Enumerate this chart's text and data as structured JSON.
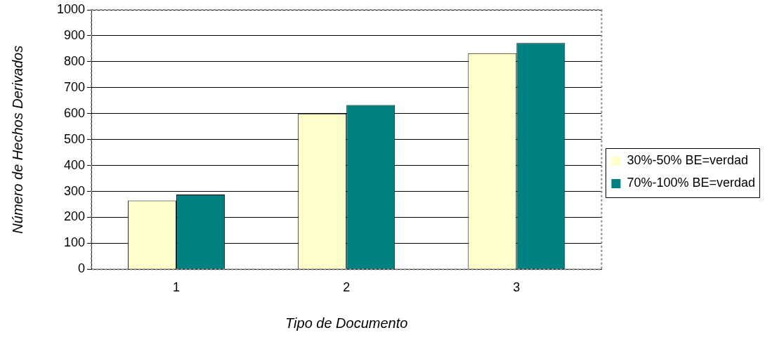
{
  "chart_data": {
    "type": "bar",
    "xlabel": "Tipo de Documento",
    "ylabel": "Número de Hechos Derivados",
    "categories": [
      "1",
      "2",
      "3"
    ],
    "series": [
      {
        "name": "30%-50% BE=verdad",
        "color": "#ffffcc",
        "values": [
          265,
          600,
          833
        ]
      },
      {
        "name": "70%-100% BE=verdad",
        "color": "#008080",
        "values": [
          288,
          633,
          872
        ]
      }
    ],
    "ylim": [
      0,
      1000
    ],
    "yticks": [
      0,
      100,
      200,
      300,
      400,
      500,
      600,
      700,
      800,
      900,
      1000
    ],
    "grid": "y",
    "legend": "right"
  }
}
